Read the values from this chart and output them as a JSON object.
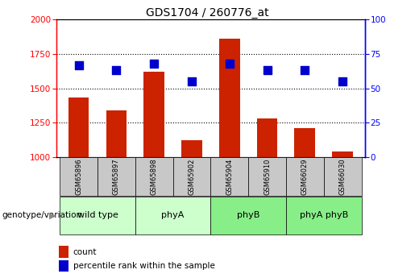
{
  "title": "GDS1704 / 260776_at",
  "samples": [
    "GSM65896",
    "GSM65897",
    "GSM65898",
    "GSM65902",
    "GSM65904",
    "GSM65910",
    "GSM66029",
    "GSM66030"
  ],
  "group_bounds": [
    {
      "start": 0,
      "end": 1,
      "label": "wild type",
      "color": "#ccffcc"
    },
    {
      "start": 2,
      "end": 3,
      "label": "phyA",
      "color": "#ccffcc"
    },
    {
      "start": 4,
      "end": 5,
      "label": "phyB",
      "color": "#88ee88"
    },
    {
      "start": 6,
      "end": 7,
      "label": "phyA phyB",
      "color": "#88ee88"
    }
  ],
  "count_values": [
    1430,
    1340,
    1620,
    1120,
    1860,
    1280,
    1210,
    1040
  ],
  "percentile_values": [
    67,
    63,
    68,
    55,
    68,
    63,
    63,
    55
  ],
  "left_ylim": [
    1000,
    2000
  ],
  "right_ylim": [
    0,
    100
  ],
  "left_yticks": [
    1000,
    1250,
    1500,
    1750,
    2000
  ],
  "right_yticks": [
    0,
    25,
    50,
    75,
    100
  ],
  "grid_lines": [
    1250,
    1500,
    1750
  ],
  "bar_color": "#cc2200",
  "dot_color": "#0000cc",
  "bar_width": 0.55,
  "dot_size": 45,
  "count_label": "count",
  "percentile_label": "percentile rank within the sample",
  "genotype_label": "genotype/variation",
  "sample_box_color": "#c8c8c8",
  "title_fontsize": 10,
  "tick_fontsize": 7.5,
  "label_fontsize": 7.5,
  "group_fontsize": 8
}
